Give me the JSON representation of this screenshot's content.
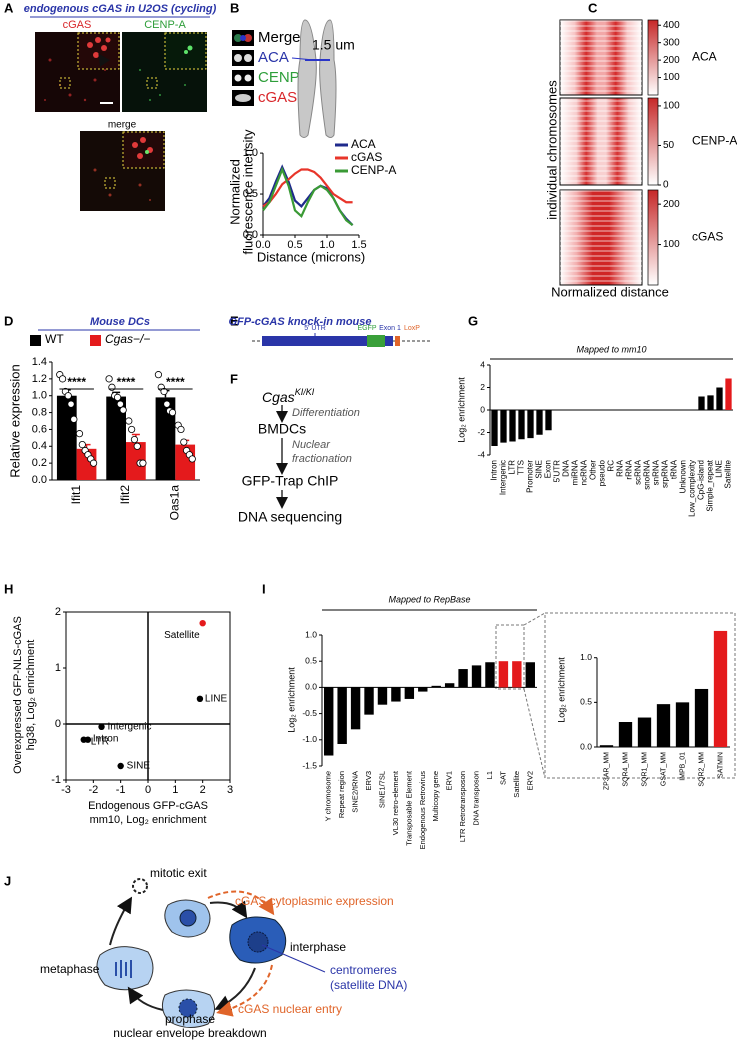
{
  "panels": {
    "letters": [
      "A",
      "B",
      "C",
      "D",
      "E",
      "F",
      "G",
      "H",
      "I",
      "J"
    ],
    "A": {
      "title": "endogenous cGAS in U2OS (cycling)",
      "labels": [
        "cGAS",
        "CENP-A",
        "merge"
      ]
    },
    "B": {
      "channels": [
        "Merge",
        "ACA",
        "CENP-A",
        "cGAS"
      ],
      "scale": "1.5 um"
    },
    "D": {
      "title": "Mouse DCs"
    },
    "E": {
      "title": "GFP-cGAS knock-in mouse",
      "labels": [
        "5' UTR",
        "EGFP",
        "Exon 1",
        "LoxP"
      ]
    },
    "F": {
      "gene": "Cgas",
      "genotype": "KI/KI",
      "steps": [
        "BMDCs",
        "GFP-Trap ChIP",
        "DNA sequencing"
      ],
      "transitions": [
        "Differentiation",
        "Nuclear",
        "fractionation"
      ]
    },
    "J": {
      "stages": [
        "mitotic exit",
        "interphase",
        "metaphase",
        "prophase",
        "nuclear envelope breakdown"
      ],
      "events": [
        "cGAS cytoplasmic expression",
        "cGAS nuclear entry"
      ],
      "target": [
        "centromeres",
        "(satellite DNA)"
      ]
    }
  },
  "chart_data": [
    {
      "type": "line",
      "ylabel": [
        "Normalized",
        "fluorescence intensity"
      ],
      "xlabel": "Distance (microns)",
      "x": [
        0,
        0.1,
        0.2,
        0.3,
        0.4,
        0.5,
        0.6,
        0.7,
        0.8,
        0.9,
        1,
        1.1,
        1.2,
        1.3,
        1.4
      ],
      "series": [
        {
          "name": "ACA",
          "color": "#1f2a8c",
          "values": [
            0.35,
            0.45,
            0.65,
            0.83,
            0.65,
            0.42,
            0.35,
            0.45,
            0.55,
            0.6,
            0.57,
            0.45,
            0.3,
            0.2,
            0.12
          ]
        },
        {
          "name": "cGAS",
          "color": "#e8352a",
          "values": [
            0.35,
            0.4,
            0.5,
            0.62,
            0.68,
            0.75,
            0.8,
            0.8,
            0.77,
            0.7,
            0.6,
            0.5,
            0.45,
            0.4,
            0.4
          ]
        },
        {
          "name": "CENP-A",
          "color": "#3a9a35",
          "values": [
            0.3,
            0.4,
            0.6,
            0.8,
            0.6,
            0.3,
            0.23,
            0.4,
            0.55,
            0.6,
            0.55,
            0.45,
            0.3,
            0.18,
            0.12
          ]
        }
      ],
      "xlim": [
        0,
        1.5
      ],
      "ylim": [
        0,
        1.05
      ],
      "xticks": [
        {
          "value": 0,
          "label": "0.0"
        },
        0.5,
        {
          "value": 1,
          "label": "1.0"
        },
        1.5
      ],
      "yticks": [
        {
          "value": 0,
          "label": "0.0"
        },
        0.5,
        {
          "value": 1,
          "label": "1.0"
        }
      ],
      "legend": "upper right"
    },
    {
      "type": "bar",
      "ylabel": "Relative expression",
      "categories": [
        "Ifit1",
        "Ifit2",
        "Oas1a"
      ],
      "series": [
        {
          "name": "WT",
          "color": "#000000",
          "values": [
            1.0,
            0.99,
            0.98
          ],
          "errors": [
            0.07,
            0.05,
            0.08
          ],
          "points": [
            [
              1.25,
              1.2,
              1.05,
              1.0,
              0.9,
              0.72
            ],
            [
              1.2,
              1.1,
              1.0,
              0.98,
              0.9,
              0.83
            ],
            [
              1.25,
              1.1,
              1.05,
              0.9,
              0.82,
              0.8
            ]
          ]
        },
        {
          "name": "Cgas−/−",
          "color": "#e41a1c",
          "values": [
            0.37,
            0.45,
            0.42
          ],
          "errors": [
            0.05,
            0.09,
            0.05
          ],
          "points": [
            [
              0.55,
              0.42,
              0.35,
              0.3,
              0.25,
              0.2
            ],
            [
              0.7,
              0.6,
              0.48,
              0.4,
              0.2,
              0.2
            ],
            [
              0.65,
              0.6,
              0.45,
              0.35,
              0.3,
              0.25
            ]
          ]
        }
      ],
      "annotations": [
        "****",
        "****",
        "****"
      ],
      "ylim": [
        0,
        1.4
      ],
      "yticks": [
        {
          "value": 0,
          "label": "0.0"
        },
        0.2,
        0.4,
        0.6,
        0.8,
        {
          "value": 1,
          "label": "1.0"
        },
        1.2,
        1.4
      ]
    },
    {
      "type": "bar",
      "title": "Mapped to mm10",
      "ylabel": "Log₂ enrichment",
      "categories": [
        "Intron",
        "Intergenic",
        "LTR",
        "TTS",
        "Promoter",
        "SINE",
        "Exon",
        "5'UTR",
        "DNA",
        "miRNA",
        "ncRNA",
        "Other",
        "pseudo",
        "RC",
        "RNA",
        "rRNA",
        "scRNA",
        "snoRNA",
        "snRNA",
        "srpRNA",
        "tRNA",
        "Unknown",
        "Low_complexity",
        "CpG-island",
        "Simple_repeat",
        "LINE",
        "Satellite"
      ],
      "values": [
        -3.2,
        -2.9,
        -2.8,
        -2.6,
        -2.5,
        -2.2,
        -1.8,
        0,
        0,
        0,
        0,
        0,
        0,
        0,
        0,
        0,
        0,
        0,
        0,
        0,
        0,
        0,
        0,
        1.2,
        1.3,
        2.0,
        2.8
      ],
      "colors": [
        "#000000",
        "#000000",
        "#000000",
        "#000000",
        "#000000",
        "#000000",
        "#000000",
        "#000000",
        "#000000",
        "#000000",
        "#000000",
        "#000000",
        "#000000",
        "#000000",
        "#000000",
        "#000000",
        "#000000",
        "#000000",
        "#000000",
        "#000000",
        "#000000",
        "#000000",
        "#000000",
        "#000000",
        "#000000",
        "#000000",
        "#e41a1c"
      ],
      "label_colors": [
        "#000000",
        "#000000",
        "#000000",
        "#000000",
        "#000000",
        "#000000",
        "#000000",
        "#999999",
        "#999999",
        "#999999",
        "#999999",
        "#999999",
        "#999999",
        "#999999",
        "#999999",
        "#999999",
        "#999999",
        "#999999",
        "#999999",
        "#999999",
        "#999999",
        "#999999",
        "#999999",
        "#000000",
        "#000000",
        "#000000",
        "#e41a1c"
      ],
      "ylim": [
        -4,
        4
      ],
      "yticks": [
        -4,
        -2,
        0,
        2,
        4
      ]
    },
    {
      "type": "scatter",
      "xlabel": [
        "Endogenous GFP-cGAS",
        "mm10, Log₂ enrichment"
      ],
      "ylabel": [
        "Overexpressed GFP-NLS-cGAS",
        "hg38, Log₂ enrichment"
      ],
      "x": [
        2.0,
        1.9,
        -1.7,
        -2.2,
        -2.35,
        -1.0
      ],
      "y": [
        1.8,
        0.45,
        -0.05,
        -0.28,
        -0.28,
        -0.75
      ],
      "labels": [
        "Satellite",
        "LINE",
        "Intergenic",
        "Intron",
        "LTR",
        "SINE"
      ],
      "colors": [
        "#e41a1c",
        "#000000",
        "#000000",
        "#000000",
        "#000000",
        "#000000"
      ],
      "xlim": [
        -3,
        3
      ],
      "ylim": [
        -1,
        2
      ],
      "xticks": [
        -3,
        -2,
        -1,
        0,
        1,
        2,
        3
      ],
      "yticks": [
        -1,
        0,
        1,
        2
      ]
    },
    {
      "type": "bar",
      "title": "Mapped to RepBase",
      "ylabel": "Log₂ enrichment",
      "categories": [
        "Y chromosome",
        "Repeat region",
        "SINE2/tRNA",
        "ERV3",
        "SINE1/7SL",
        "VL30 retro-element",
        "Transposable Element",
        "Endogenous Retrovirus",
        "Multicopy gene",
        "ERV1",
        "LTR Retrotransposon",
        "DNA transposon",
        "L1",
        "SAT",
        "Satellite",
        "ERV2"
      ],
      "values": [
        -1.3,
        -1.08,
        -0.8,
        -0.52,
        -0.33,
        -0.27,
        -0.22,
        -0.08,
        0.03,
        0.08,
        0.35,
        0.42,
        0.48,
        0.5,
        0.5,
        0.48
      ],
      "colors": [
        "#000000",
        "#000000",
        "#000000",
        "#000000",
        "#000000",
        "#000000",
        "#000000",
        "#000000",
        "#000000",
        "#000000",
        "#000000",
        "#000000",
        "#000000",
        "#e41a1c",
        "#e41a1c",
        "#000000"
      ],
      "label_colors": [
        "#000000",
        "#000000",
        "#000000",
        "#000000",
        "#000000",
        "#000000",
        "#000000",
        "#000000",
        "#000000",
        "#000000",
        "#000000",
        "#000000",
        "#000000",
        "#e41a1c",
        "#e41a1c",
        "#000000"
      ],
      "ylim": [
        -1.5,
        1
      ],
      "yticks": [
        -1.5,
        {
          "value": -1,
          "label": "-1.0"
        },
        -0.5,
        {
          "value": 0,
          "label": "0.0"
        },
        0.5,
        {
          "value": 1,
          "label": "1.0"
        }
      ]
    },
    {
      "type": "bar",
      "ylabel": "Log₂ enrichment",
      "categories": [
        "ZP3AR_MM",
        "SQR4_MM",
        "SQR1_MM",
        "GSAT_MM",
        "IMPB_01",
        "SQR2_MM",
        "SATMIN"
      ],
      "values": [
        0.02,
        0.28,
        0.33,
        0.48,
        0.5,
        0.65,
        1.3
      ],
      "colors": [
        "#000000",
        "#000000",
        "#000000",
        "#000000",
        "#000000",
        "#000000",
        "#e41a1c"
      ],
      "ylim": [
        0,
        1.4
      ],
      "yticks": [
        {
          "value": 0,
          "label": "0.0"
        },
        0.5,
        {
          "value": 1,
          "label": "1.0"
        }
      ]
    },
    {
      "type": "heatmap",
      "ylabel": "individual chromosomes",
      "xlabel": "Normalized distance",
      "maps": [
        {
          "name": "ACA",
          "clim": [
            0,
            430
          ],
          "ticks": [
            100,
            200,
            300,
            400
          ]
        },
        {
          "name": "CENP-A",
          "clim": [
            0,
            110
          ],
          "ticks": [
            0,
            50,
            100
          ]
        },
        {
          "name": "cGAS",
          "clim": [
            0,
            235
          ],
          "ticks": [
            100,
            200
          ]
        }
      ]
    }
  ]
}
